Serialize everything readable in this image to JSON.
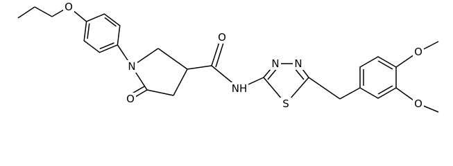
{
  "atoms": [
    {
      "label": "O"
    },
    {
      "label": "N"
    },
    {
      "label": "O"
    },
    {
      "label": "O"
    },
    {
      "label": "NH"
    },
    {
      "label": "N"
    },
    {
      "label": "N"
    },
    {
      "label": "S"
    },
    {
      "label": "O"
    },
    {
      "label": "O"
    }
  ]
}
